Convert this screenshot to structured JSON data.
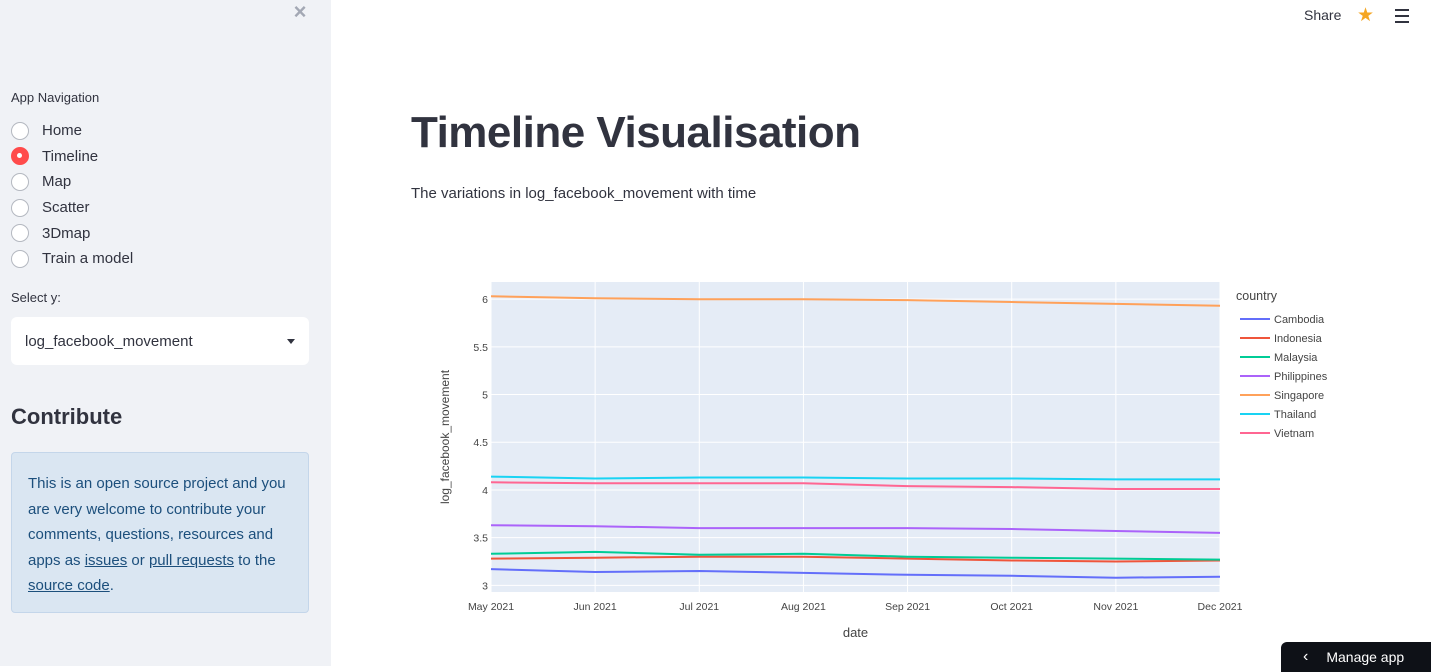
{
  "sidebar": {
    "nav_label": "App Navigation",
    "nav_items": [
      {
        "label": "Home",
        "checked": false
      },
      {
        "label": "Timeline",
        "checked": true
      },
      {
        "label": "Map",
        "checked": false
      },
      {
        "label": "Scatter",
        "checked": false
      },
      {
        "label": "3Dmap",
        "checked": false
      },
      {
        "label": "Train a model",
        "checked": false
      }
    ],
    "select_label": "Select y:",
    "select_value": "log_facebook_movement",
    "contribute_title": "Contribute",
    "info": {
      "text1": "This is an open source project and you are very welcome to contribute your comments, questions, resources and apps as ",
      "link1": "issues",
      "text2": " or ",
      "link2": "pull requests",
      "text3": " to the ",
      "link3": "source code",
      "text4": "."
    }
  },
  "header": {
    "share_label": "Share"
  },
  "main": {
    "title": "Timeline Visualisation",
    "subtitle": "The variations in log_facebook_movement with time"
  },
  "manage_app_label": "Manage app",
  "colors": {
    "accent": "#ff4b4b",
    "info_bg": "#dae6f2",
    "plot_bg": "#e5ecf6"
  },
  "chart_data": {
    "type": "line",
    "xlabel": "date",
    "ylabel": "log_facebook_movement",
    "x": [
      "May 2021",
      "Jun 2021",
      "Jul 2021",
      "Aug 2021",
      "Sep 2021",
      "Oct 2021",
      "Nov 2021",
      "Dec 2021"
    ],
    "yticks": [
      "3",
      "3.5",
      "4",
      "4.5",
      "5",
      "5.5",
      "6"
    ],
    "ylim": [
      2.93,
      6.18
    ],
    "legend_title": "country",
    "series": [
      {
        "name": "Cambodia",
        "color": "#636efa",
        "values": [
          3.17,
          3.14,
          3.15,
          3.13,
          3.11,
          3.1,
          3.08,
          3.09
        ]
      },
      {
        "name": "Indonesia",
        "color": "#ef553b",
        "values": [
          3.28,
          3.29,
          3.3,
          3.3,
          3.28,
          3.26,
          3.25,
          3.26
        ]
      },
      {
        "name": "Malaysia",
        "color": "#00cc96",
        "values": [
          3.33,
          3.35,
          3.32,
          3.33,
          3.3,
          3.29,
          3.28,
          3.27
        ]
      },
      {
        "name": "Philippines",
        "color": "#ab63fa",
        "values": [
          3.63,
          3.62,
          3.6,
          3.6,
          3.6,
          3.59,
          3.57,
          3.55
        ]
      },
      {
        "name": "Singapore",
        "color": "#ffa15a",
        "values": [
          6.03,
          6.01,
          6.0,
          6.0,
          5.99,
          5.97,
          5.95,
          5.93
        ]
      },
      {
        "name": "Thailand",
        "color": "#19d3f3",
        "values": [
          4.14,
          4.12,
          4.13,
          4.13,
          4.12,
          4.12,
          4.11,
          4.11
        ]
      },
      {
        "name": "Vietnam",
        "color": "#ff6692",
        "values": [
          4.08,
          4.07,
          4.07,
          4.07,
          4.04,
          4.03,
          4.01,
          4.01
        ]
      }
    ],
    "grid": true,
    "legend_position": "right"
  }
}
